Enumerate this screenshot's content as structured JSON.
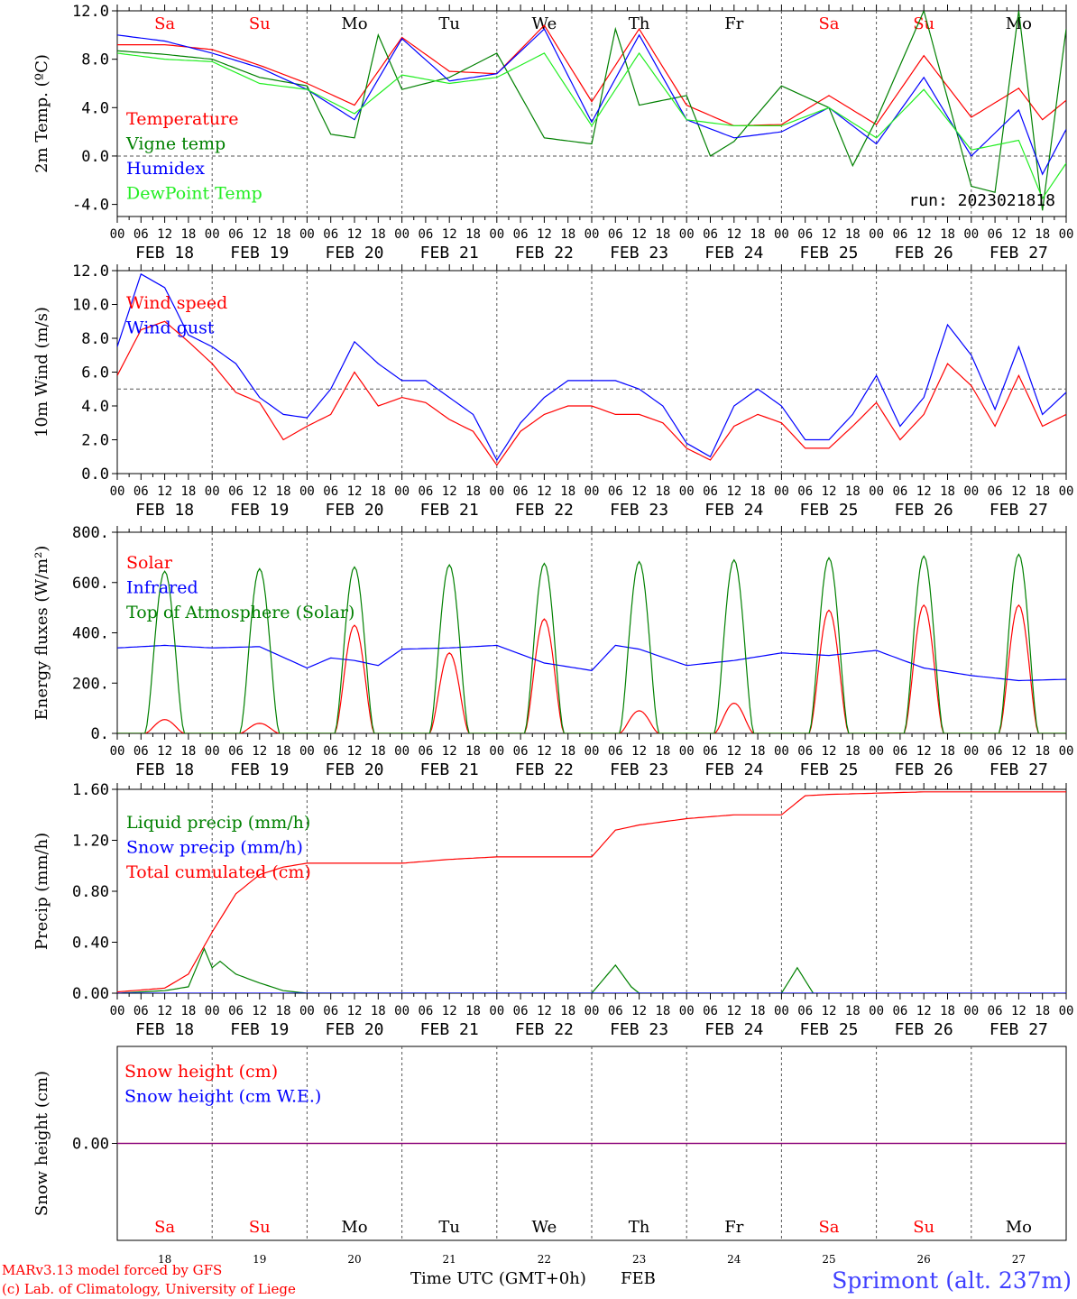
{
  "days": [
    "FEB 18",
    "FEB 19",
    "FEB 20",
    "FEB 21",
    "FEB 22",
    "FEB 23",
    "FEB 24",
    "FEB 25",
    "FEB 26",
    "FEB 27"
  ],
  "hour_ticks": [
    "00",
    "06",
    "12",
    "18"
  ],
  "hour_end": "00",
  "weekdays": [
    "Sa",
    "Su",
    "Mo",
    "Tu",
    "We",
    "Th",
    "Fr",
    "Sa",
    "Su",
    "Mo"
  ],
  "weekend_flags": [
    true,
    true,
    false,
    false,
    false,
    false,
    false,
    true,
    true,
    false
  ],
  "bottom_day_numbers": [
    "18",
    "19",
    "20",
    "21",
    "22",
    "23",
    "24",
    "25",
    "26",
    "27"
  ],
  "footer": {
    "credit_line1": "MARv3.13 model forced by GFS",
    "credit_line2": "(c) Lab. of Climatology, University of Liege",
    "time_label": "Time UTC (GMT+0h)",
    "month": "FEB",
    "station": "Sprimont (alt. 237m)"
  },
  "colors": {
    "red": "#ff0000",
    "green": "#008000",
    "blue": "#0000ff",
    "lightgreen": "#22ee22",
    "purple": "#800080",
    "footer_blue": "#4040ff"
  },
  "chart_data": [
    {
      "type": "line",
      "ylabel": "2m Temp. (ºC)",
      "ylim": [
        -5.0,
        12.0
      ],
      "yticks": [
        "-4.0",
        "0.0",
        "4.0",
        "8.0",
        "12.0"
      ],
      "ytick_values": [
        -4,
        0,
        4,
        8,
        12
      ],
      "ref_line": 0,
      "annotation": "run: 2023021818",
      "series": [
        {
          "name": "Temperature",
          "color": "#ff0000",
          "x": [
            0,
            12,
            24,
            36,
            48,
            60,
            72,
            84,
            96,
            108,
            120,
            132,
            144,
            156,
            168,
            180,
            192,
            204,
            216,
            228,
            234,
            240
          ],
          "values": [
            9.2,
            9.2,
            8.8,
            7.5,
            6.0,
            4.2,
            9.8,
            7.0,
            6.8,
            10.8,
            4.5,
            10.5,
            4.2,
            2.5,
            2.6,
            5.0,
            2.6,
            8.3,
            3.2,
            5.6,
            3.0,
            4.6
          ]
        },
        {
          "name": "Vigne temp",
          "color": "#008000",
          "x": [
            0,
            12,
            24,
            36,
            48,
            54,
            60,
            66,
            72,
            84,
            96,
            108,
            120,
            126,
            132,
            144,
            150,
            156,
            168,
            180,
            186,
            192,
            204,
            216,
            222,
            228,
            234,
            240
          ],
          "values": [
            8.7,
            8.4,
            8.0,
            6.5,
            5.8,
            1.8,
            1.5,
            10.0,
            5.5,
            6.5,
            8.5,
            1.5,
            1.0,
            10.5,
            4.2,
            5.0,
            0.0,
            1.2,
            5.8,
            4.0,
            -0.8,
            3.0,
            12.0,
            -2.5,
            -3.0,
            12.0,
            -4.5,
            10.5
          ]
        },
        {
          "name": "Humidex",
          "color": "#0000ff",
          "x": [
            0,
            12,
            24,
            36,
            48,
            60,
            72,
            84,
            96,
            108,
            120,
            132,
            144,
            156,
            168,
            180,
            192,
            204,
            216,
            228,
            234,
            240
          ],
          "values": [
            10.0,
            9.5,
            8.5,
            7.3,
            5.5,
            3.0,
            9.7,
            6.2,
            6.8,
            10.5,
            2.8,
            10.0,
            3.0,
            1.5,
            2.0,
            4.0,
            1.0,
            6.5,
            0.0,
            3.8,
            -1.5,
            2.2
          ]
        },
        {
          "name": "DewPoint Temp",
          "color": "#22ee22",
          "x": [
            0,
            12,
            24,
            36,
            48,
            60,
            72,
            84,
            96,
            108,
            120,
            132,
            144,
            156,
            168,
            180,
            192,
            204,
            216,
            228,
            234,
            240
          ],
          "values": [
            8.5,
            8.0,
            7.8,
            6.0,
            5.5,
            3.5,
            6.7,
            6.0,
            6.5,
            8.5,
            2.5,
            8.5,
            3.0,
            2.5,
            2.5,
            4.0,
            1.5,
            5.5,
            0.5,
            1.3,
            -3.5,
            -0.6
          ]
        }
      ]
    },
    {
      "type": "line",
      "ylabel": "10m Wind (m/s)",
      "ylim": [
        0.0,
        12.0
      ],
      "yticks": [
        "0.0",
        "2.0",
        "4.0",
        "6.0",
        "8.0",
        "10.0",
        "12.0"
      ],
      "ytick_values": [
        0,
        2,
        4,
        6,
        8,
        10,
        12
      ],
      "ref_line": 5,
      "series": [
        {
          "name": "Wind speed",
          "color": "#ff0000",
          "x": [
            0,
            6,
            12,
            18,
            24,
            30,
            36,
            42,
            48,
            54,
            60,
            66,
            72,
            78,
            84,
            90,
            96,
            102,
            108,
            114,
            120,
            126,
            132,
            138,
            144,
            150,
            156,
            162,
            168,
            174,
            180,
            186,
            192,
            198,
            204,
            210,
            216,
            222,
            228,
            234,
            240
          ],
          "values": [
            5.8,
            8.5,
            9.0,
            7.8,
            6.5,
            4.8,
            4.2,
            2.0,
            2.8,
            3.5,
            6.0,
            4.0,
            4.5,
            4.2,
            3.2,
            2.5,
            0.5,
            2.5,
            3.5,
            4.0,
            4.0,
            3.5,
            3.5,
            3.0,
            1.5,
            0.8,
            2.8,
            3.5,
            3.0,
            1.5,
            1.5,
            2.8,
            4.2,
            2.0,
            3.5,
            6.5,
            5.2,
            2.8,
            5.8,
            2.8,
            3.5
          ]
        },
        {
          "name": "Wind gust",
          "color": "#0000ff",
          "x": [
            0,
            6,
            12,
            18,
            24,
            30,
            36,
            42,
            48,
            54,
            60,
            66,
            72,
            78,
            84,
            90,
            96,
            102,
            108,
            114,
            120,
            126,
            132,
            138,
            144,
            150,
            156,
            162,
            168,
            174,
            180,
            186,
            192,
            198,
            204,
            210,
            216,
            222,
            228,
            234,
            240
          ],
          "values": [
            7.5,
            11.8,
            11.0,
            8.2,
            7.5,
            6.5,
            4.5,
            3.5,
            3.3,
            5.0,
            7.8,
            6.5,
            5.5,
            5.5,
            4.5,
            3.5,
            0.8,
            3.0,
            4.5,
            5.5,
            5.5,
            5.5,
            5.0,
            4.0,
            1.8,
            1.0,
            4.0,
            5.0,
            4.0,
            2.0,
            2.0,
            3.5,
            5.8,
            2.8,
            4.5,
            8.8,
            7.0,
            3.8,
            7.5,
            3.5,
            4.8
          ]
        }
      ]
    },
    {
      "type": "line",
      "ylabel": "Energy fluxes (W/m²)",
      "ylim": [
        0,
        800
      ],
      "yticks": [
        "0.",
        "200.",
        "400.",
        "600.",
        "800."
      ],
      "ytick_values": [
        0,
        200,
        400,
        600,
        800
      ],
      "day_peak": [
        0,
        0,
        0,
        0,
        0,
        0,
        0,
        0,
        0,
        0
      ],
      "series": [
        {
          "name": "Solar",
          "color": "#ff0000",
          "daily_peak": [
            55,
            40,
            430,
            320,
            455,
            90,
            120,
            490,
            510,
            510
          ]
        },
        {
          "name": "Infrared",
          "color": "#0000ff",
          "x": [
            0,
            12,
            24,
            36,
            48,
            54,
            60,
            66,
            72,
            84,
            96,
            108,
            120,
            126,
            132,
            144,
            156,
            168,
            180,
            192,
            204,
            216,
            228,
            240
          ],
          "values": [
            340,
            350,
            340,
            345,
            260,
            300,
            290,
            270,
            335,
            340,
            350,
            280,
            250,
            350,
            335,
            270,
            290,
            320,
            310,
            330,
            260,
            230,
            210,
            215
          ]
        },
        {
          "name": "Top of Atmosphere (Solar)",
          "color": "#008000",
          "daily_peak": [
            645,
            655,
            662,
            670,
            676,
            683,
            690,
            698,
            705,
            712
          ]
        }
      ]
    },
    {
      "type": "line",
      "ylabel": "Precip (mm/h)",
      "ylim": [
        0.0,
        1.6
      ],
      "yticks": [
        "0.00",
        "0.40",
        "0.80",
        "1.20",
        "1.60"
      ],
      "ytick_values": [
        0,
        0.4,
        0.8,
        1.2,
        1.6
      ],
      "series": [
        {
          "name": "Liquid precip (mm/h)",
          "color": "#008000",
          "x": [
            0,
            12,
            18,
            22,
            24,
            26,
            30,
            36,
            42,
            48,
            120,
            126,
            130,
            132,
            168,
            172,
            176
          ],
          "values": [
            0,
            0.02,
            0.05,
            0.35,
            0.2,
            0.25,
            0.15,
            0.08,
            0.02,
            0,
            0,
            0.22,
            0.05,
            0,
            0,
            0.2,
            0
          ]
        },
        {
          "name": "Snow precip (mm/h)",
          "color": "#0000ff",
          "x": [
            0,
            240
          ],
          "values": [
            0,
            0
          ]
        },
        {
          "name": "Total cumulated (cm)",
          "color": "#ff0000",
          "x": [
            0,
            12,
            18,
            24,
            30,
            36,
            42,
            48,
            60,
            72,
            84,
            96,
            108,
            114,
            120,
            126,
            132,
            144,
            156,
            168,
            174,
            180,
            192,
            204,
            216,
            228,
            240
          ],
          "values": [
            0.01,
            0.04,
            0.15,
            0.48,
            0.78,
            0.93,
            0.99,
            1.02,
            1.02,
            1.02,
            1.05,
            1.07,
            1.07,
            1.07,
            1.07,
            1.28,
            1.32,
            1.37,
            1.4,
            1.4,
            1.55,
            1.56,
            1.57,
            1.58,
            1.58,
            1.58,
            1.58
          ]
        }
      ]
    },
    {
      "type": "line",
      "ylabel": "Snow height (cm)",
      "yticks": [
        "0.00"
      ],
      "ytick_values": [
        0
      ],
      "ylim": [
        -1,
        1
      ],
      "series": [
        {
          "name": "Snow height (cm)",
          "color": "#ff0000",
          "x": [
            0,
            240
          ],
          "values": [
            0,
            0
          ]
        },
        {
          "name": "Snow height (cm W.E.)",
          "color": "#0000ff",
          "x": [
            0,
            240
          ],
          "values": [
            0,
            0
          ]
        }
      ]
    }
  ]
}
